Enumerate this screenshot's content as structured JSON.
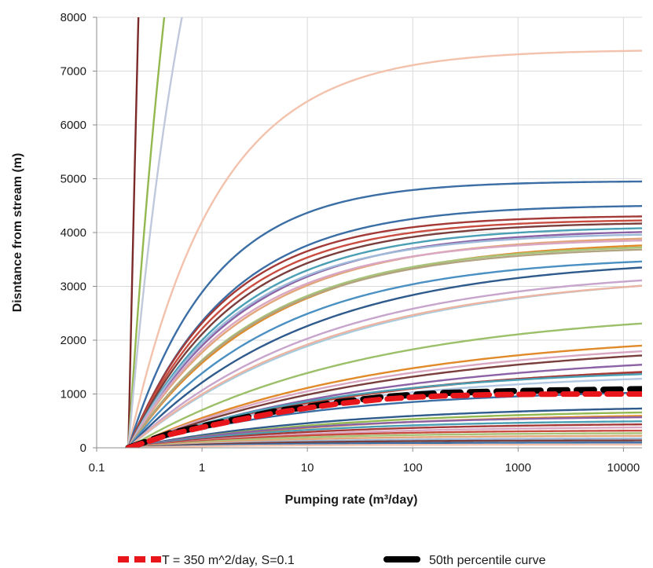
{
  "chart_data": {
    "type": "line",
    "xscale": "log",
    "xlim": [
      0.1,
      15000
    ],
    "ylim": [
      0,
      8000
    ],
    "xticks": [
      0.1,
      1,
      10,
      100,
      1000,
      10000
    ],
    "xtick_labels": [
      "0.1",
      "1",
      "10",
      "100",
      "1000",
      "10000"
    ],
    "yticks": [
      0,
      1000,
      2000,
      3000,
      4000,
      5000,
      6000,
      7000,
      8000
    ],
    "ytick_labels": [
      "0",
      "1000",
      "2000",
      "3000",
      "4000",
      "5000",
      "6000",
      "7000",
      "8000"
    ],
    "xlabel": "Pumping rate (m³/day)",
    "ylabel": "Disntance from stream (m)",
    "grid": "vertical",
    "legend": "bottom",
    "x0": 0.2,
    "series": [
      {
        "color": "#7b2a2a",
        "plateau": 60000,
        "k": 1.5
      },
      {
        "color": "#93b84f",
        "plateau": 20000,
        "k": 1.5
      },
      {
        "color": "#c0c8dc",
        "plateau": 15000,
        "k": 1.5
      },
      {
        "color": "#f3c2ad",
        "plateau": 7400,
        "k": 1.2
      },
      {
        "color": "#3a6ea5",
        "plateau": 4960,
        "k": 1.25
      },
      {
        "color": "#3a6ea5",
        "plateau": 4520,
        "k": 1.05
      },
      {
        "color": "#a33a37",
        "plateau": 4320,
        "k": 1.1
      },
      {
        "color": "#c84c3f",
        "plateau": 4250,
        "k": 1.05
      },
      {
        "color": "#7a3f3c",
        "plateau": 4200,
        "k": 1.0
      },
      {
        "color": "#4a9fb5",
        "plateau": 4120,
        "k": 0.95
      },
      {
        "color": "#8c62a6",
        "plateau": 4060,
        "k": 0.9
      },
      {
        "color": "#9fb9d9",
        "plateau": 4000,
        "k": 0.95
      },
      {
        "color": "#e3a67a",
        "plateau": 3950,
        "k": 0.85
      },
      {
        "color": "#d9a7c2",
        "plateau": 3900,
        "k": 0.9
      },
      {
        "color": "#e08a2a",
        "plateau": 3860,
        "k": 0.75
      },
      {
        "color": "#a8c47a",
        "plateau": 3800,
        "k": 0.8
      },
      {
        "color": "#b2a480",
        "plateau": 3760,
        "k": 0.8
      },
      {
        "color": "#4a90c2",
        "plateau": 3580,
        "k": 0.7
      },
      {
        "color": "#2f5b8c",
        "plateau": 3540,
        "k": 0.6
      },
      {
        "color": "#c7a5cc",
        "plateau": 3340,
        "k": 0.55
      },
      {
        "color": "#a3cce0",
        "plateau": 3300,
        "k": 0.5
      },
      {
        "color": "#ecb4a3",
        "plateau": 3270,
        "k": 0.52
      },
      {
        "color": "#9cbf6a",
        "plateau": 2600,
        "k": 0.45
      },
      {
        "color": "#e08a2a",
        "plateau": 2180,
        "k": 0.42
      },
      {
        "color": "#d9a7c2",
        "plateau": 2060,
        "k": 0.42
      },
      {
        "color": "#7a3f3c",
        "plateau": 2000,
        "k": 0.4
      },
      {
        "color": "#8c62a6",
        "plateau": 1800,
        "k": 0.4
      },
      {
        "color": "#c84c3f",
        "plateau": 1620,
        "k": 0.42
      },
      {
        "color": "#a33a37",
        "plateau": 1580,
        "k": 0.45
      },
      {
        "color": "#4a9fb5",
        "plateau": 1500,
        "k": 0.5
      },
      {
        "color": "#b2c8e2",
        "plateau": 1420,
        "k": 0.48
      },
      {
        "color": "#3a6ea5",
        "plateau": 1100,
        "k": 0.55
      },
      {
        "color": "#2f5b8c",
        "plateau": 800,
        "k": 0.5
      },
      {
        "color": "#93b84f",
        "plateau": 720,
        "k": 0.5
      },
      {
        "color": "#e08a2a",
        "plateau": 650,
        "k": 0.5
      },
      {
        "color": "#8c62a6",
        "plateau": 600,
        "k": 0.6
      },
      {
        "color": "#4a9fb5",
        "plateau": 520,
        "k": 0.6
      },
      {
        "color": "#a33a37",
        "plateau": 460,
        "k": 0.6
      },
      {
        "color": "#d9a7c2",
        "plateau": 400,
        "k": 0.6
      },
      {
        "color": "#c84c3f",
        "plateau": 330,
        "k": 0.7
      },
      {
        "color": "#a8c47a",
        "plateau": 280,
        "k": 0.7
      },
      {
        "color": "#e3a67a",
        "plateau": 230,
        "k": 0.7
      },
      {
        "color": "#9fb9d9",
        "plateau": 180,
        "k": 0.7
      },
      {
        "color": "#7a3f3c",
        "plateau": 140,
        "k": 0.8
      },
      {
        "color": "#3a6ea5",
        "plateau": 100,
        "k": 0.8
      },
      {
        "color": "#f3c2ad",
        "plateau": 60,
        "k": 0.9
      }
    ],
    "highlight_series": [
      {
        "name": "50th percentile curve",
        "color": "#000000",
        "x": [
          0.2,
          0.3,
          0.5,
          1,
          2,
          5,
          10,
          20,
          50,
          100,
          200,
          500,
          1000,
          2000,
          5000,
          10000,
          15000
        ],
        "y": [
          0,
          120,
          270,
          400,
          520,
          680,
          760,
          850,
          940,
          985,
          1020,
          1040,
          1055,
          1065,
          1075,
          1085,
          1090
        ]
      },
      {
        "name": "T = 350 m^2/day, S=0.1",
        "color": "#e8161b",
        "x": [
          0.2,
          0.3,
          0.5,
          1,
          2,
          5,
          10,
          20,
          50,
          100,
          200,
          500,
          1000,
          2000,
          5000,
          10000,
          15000
        ],
        "y": [
          0,
          110,
          250,
          380,
          500,
          650,
          740,
          820,
          900,
          940,
          965,
          985,
          993,
          997,
          1000,
          1000,
          1000
        ]
      }
    ]
  },
  "legend": {
    "items": [
      {
        "label": "T = 350 m^2/day, S=0.1",
        "color": "#e8161b",
        "style": "dashed"
      },
      {
        "label": "50th percentile curve",
        "color": "#000000",
        "style": "dashed"
      }
    ]
  }
}
